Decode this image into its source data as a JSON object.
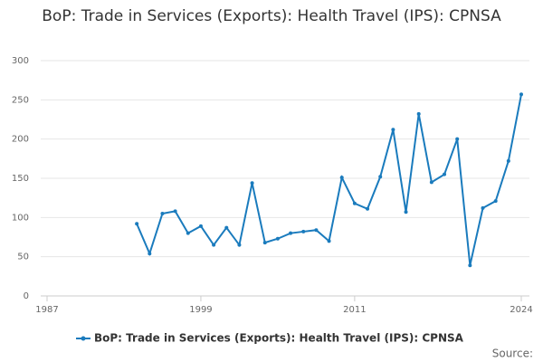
{
  "chart_data": {
    "type": "line",
    "title": "BoP: Trade in Services (Exports): Health Travel (IPS): CPNSA",
    "x": [
      1994,
      1995,
      1996,
      1997,
      1998,
      1999,
      2000,
      2001,
      2002,
      2003,
      2004,
      2005,
      2006,
      2007,
      2008,
      2009,
      2010,
      2011,
      2012,
      2013,
      2014,
      2015,
      2016,
      2017,
      2018,
      2019,
      2020,
      2021,
      2022,
      2023,
      2024
    ],
    "series": [
      {
        "name": "BoP: Trade in Services (Exports): Health Travel (IPS): CPNSA",
        "color": "#1a7bbd",
        "values": [
          92,
          54,
          105,
          108,
          80,
          89,
          65,
          87,
          65,
          144,
          68,
          73,
          80,
          82,
          84,
          70,
          151,
          118,
          111,
          152,
          212,
          107,
          232,
          145,
          155,
          200,
          39,
          112,
          121,
          172,
          257
        ]
      }
    ],
    "xlim": [
      1987,
      2024
    ],
    "xticks": [
      1987,
      1999,
      2011,
      2024
    ],
    "ylim": [
      0,
      300
    ],
    "yticks": [
      0,
      50,
      100,
      150,
      200,
      250,
      300
    ],
    "grid": true,
    "legend": "bottom",
    "source": "Source:"
  }
}
